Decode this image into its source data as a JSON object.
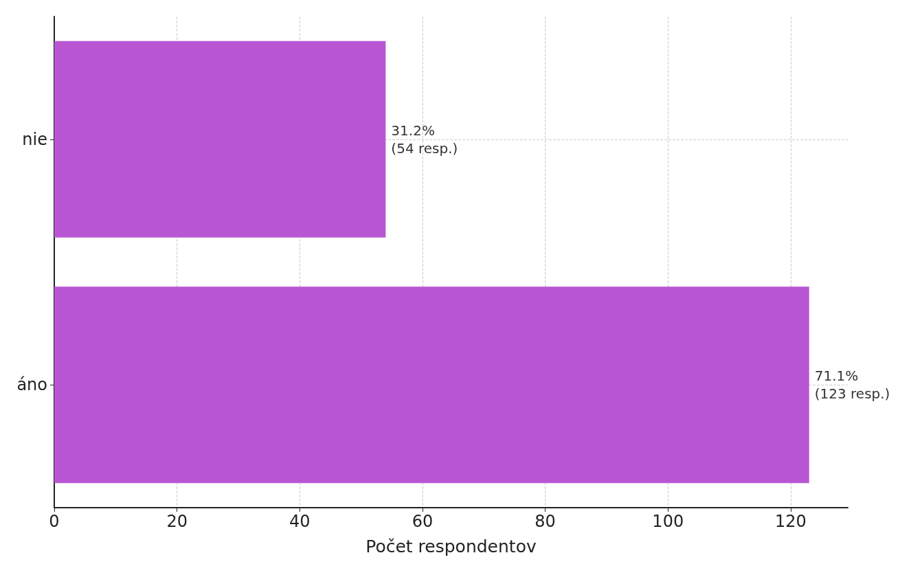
{
  "chart_data": {
    "type": "bar",
    "orientation": "horizontal",
    "xlabel": "Počet respondentov",
    "categories": [
      "nie",
      "áno"
    ],
    "values": [
      54,
      123
    ],
    "value_labels": [
      "31.2%\n(54 resp.)",
      "71.1%\n(123 resp.)"
    ],
    "color": "#b956d4",
    "xlim": [
      0,
      129.3
    ],
    "xticks": [
      0,
      20,
      40,
      60,
      80,
      100,
      120
    ],
    "grid": true
  }
}
